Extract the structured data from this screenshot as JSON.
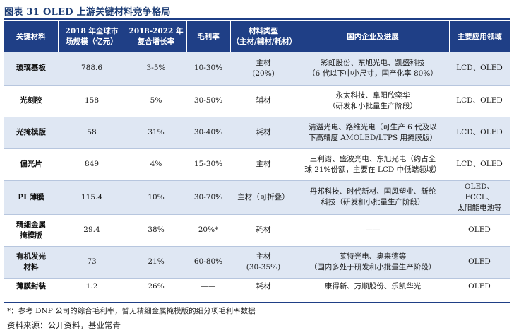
{
  "title": "图表 31 OLED 上游关键材料竞争格局",
  "headers": [
    [
      "关键材料"
    ],
    [
      "2018 年全球市",
      "场规模（亿元）"
    ],
    [
      "2018-2022 年",
      "复合增长率"
    ],
    [
      "毛利率"
    ],
    [
      "材料类型",
      "（主材/辅材/耗材）"
    ],
    [
      "国内企业及进展"
    ],
    [
      "主要应用领域"
    ]
  ],
  "rows": [
    {
      "material": "玻璃基板",
      "size": "788.6",
      "cagr": "3-5%",
      "margin": "10-30%",
      "type": [
        "主材",
        "(20%)"
      ],
      "domestic": [
        "彩虹股份、东旭光电、凯盛科技",
        "（6 代以下中小尺寸，国产化率 80%）"
      ],
      "apps": "LCD、OLED"
    },
    {
      "material": "光刻胶",
      "size": "158",
      "cagr": "5%",
      "margin": "30-50%",
      "type": [
        "辅材"
      ],
      "domestic": [
        "永太科技、阜阳欣奕华",
        "（研发和小批量生产阶段）"
      ],
      "apps": "LCD、OLED"
    },
    {
      "material": "光掩模版",
      "size": "58",
      "cagr": "31%",
      "margin": "30-40%",
      "type": [
        "耗材"
      ],
      "domestic": [
        "清溢光电、路维光电（可生产 6 代及以",
        "下高精度 AMOLED/LTPS 用掩膜版）"
      ],
      "apps": "LCD、OLED"
    },
    {
      "material": "偏光片",
      "size": "849",
      "cagr": "4%",
      "margin": "15-30%",
      "type": [
        "主材"
      ],
      "domestic": [
        "三利谱、盛波光电、东旭光电（约占全",
        "球 21%份额，主要在 LCD 中低端领域）"
      ],
      "apps": "LCD、OLED"
    },
    {
      "material": "PI 薄膜",
      "size": "115.4",
      "cagr": "10%",
      "margin": "30-70%",
      "type": [
        "主材（可折叠）"
      ],
      "domestic": [
        "丹邦科技、时代新材、国风塑业、新纶",
        "科技（研发和小批量生产阶段）"
      ],
      "apps": [
        "OLED、FCCL、",
        "太阳能电池等"
      ]
    },
    {
      "material": [
        "精细金属",
        "掩模版"
      ],
      "size": "29.4",
      "cagr": "38%",
      "margin": "20%*",
      "type": [
        "耗材"
      ],
      "domestic": [
        "——"
      ],
      "apps": "OLED"
    },
    {
      "material": [
        "有机发光",
        "材料"
      ],
      "size": "73",
      "cagr": "21%",
      "margin": "60-80%",
      "type": [
        "主材",
        "(30-35%)"
      ],
      "domestic": [
        "莱特光电、奥来德等",
        "（国内多处于研发和小批量生产阶段）"
      ],
      "apps": "OLED"
    },
    {
      "material": "薄膜封装",
      "size": "1.2",
      "cagr": "26%",
      "margin": "——",
      "type": [
        "耗材"
      ],
      "domestic": [
        "康得新、万顺股份、乐凯华光"
      ],
      "apps": "OLED"
    }
  ],
  "note": "*：参考 DNP 公司的综合毛利率，暂无精细金属掩模版的细分项毛利率数据",
  "source": "资料来源：公开资料，基业常青"
}
